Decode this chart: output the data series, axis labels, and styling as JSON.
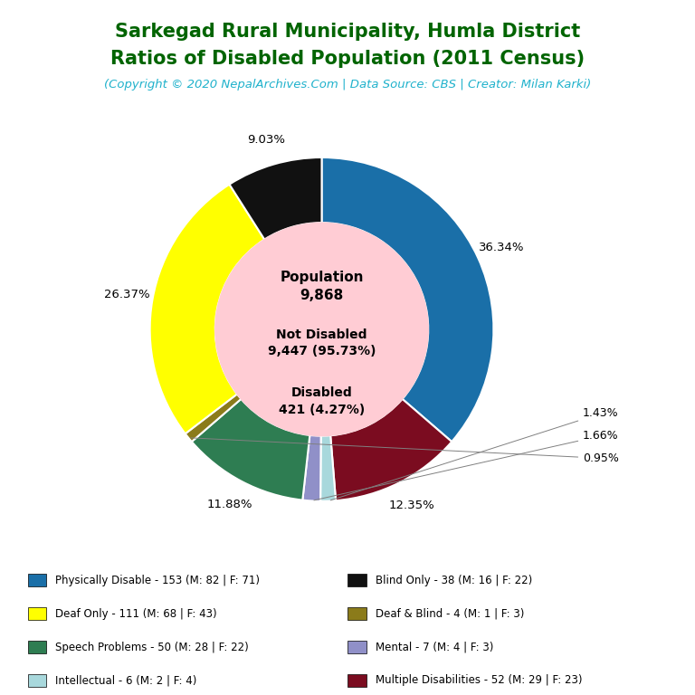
{
  "title_line1": "Sarkegad Rural Municipality, Humla District",
  "title_line2": "Ratios of Disabled Population (2011 Census)",
  "subtitle": "(Copyright © 2020 NepalArchives.Com | Data Source: CBS | Creator: Milan Karki)",
  "title_color": "#006400",
  "subtitle_color": "#20B2CC",
  "population": 9868,
  "not_disabled": 9447,
  "not_disabled_pct": "95.73",
  "disabled": 421,
  "disabled_pct": "4.27",
  "center_bg_color": "#FFCCD4",
  "segments": [
    {
      "label": "Physically Disable - 153 (M: 82 | F: 71)",
      "value": 153,
      "pct": "36.34",
      "color": "#1A6FA8"
    },
    {
      "label": "Multiple Disabilities - 52 (M: 29 | F: 23)",
      "value": 52,
      "pct": "12.35",
      "color": "#7B0C20"
    },
    {
      "label": "Intellectual - 6 (M: 2 | F: 4)",
      "value": 6,
      "pct": "1.43",
      "color": "#A8D8DC"
    },
    {
      "label": "Mental - 7 (M: 4 | F: 3)",
      "value": 7,
      "pct": "1.66",
      "color": "#9090C8"
    },
    {
      "label": "Speech Problems - 50 (M: 28 | F: 22)",
      "value": 50,
      "pct": "11.88",
      "color": "#2E7D52"
    },
    {
      "label": "Deaf & Blind - 4 (M: 1 | F: 3)",
      "value": 4,
      "pct": "0.95",
      "color": "#8B7B1A"
    },
    {
      "label": "Deaf Only - 111 (M: 68 | F: 43)",
      "value": 111,
      "pct": "26.37",
      "color": "#FFFF00"
    },
    {
      "label": "Blind Only - 38 (M: 16 | F: 22)",
      "value": 38,
      "pct": "9.03",
      "color": "#111111"
    }
  ],
  "legend_left": [
    {
      "label": "Physically Disable - 153 (M: 82 | F: 71)",
      "color": "#1A6FA8"
    },
    {
      "label": "Deaf Only - 111 (M: 68 | F: 43)",
      "color": "#FFFF00"
    },
    {
      "label": "Speech Problems - 50 (M: 28 | F: 22)",
      "color": "#2E7D52"
    },
    {
      "label": "Intellectual - 6 (M: 2 | F: 4)",
      "color": "#A8D8DC"
    }
  ],
  "legend_right": [
    {
      "label": "Blind Only - 38 (M: 16 | F: 22)",
      "color": "#111111"
    },
    {
      "label": "Deaf & Blind - 4 (M: 1 | F: 3)",
      "color": "#8B7B1A"
    },
    {
      "label": "Mental - 7 (M: 4 | F: 3)",
      "color": "#9090C8"
    },
    {
      "label": "Multiple Disabilities - 52 (M: 29 | F: 23)",
      "color": "#7B0C20"
    }
  ]
}
